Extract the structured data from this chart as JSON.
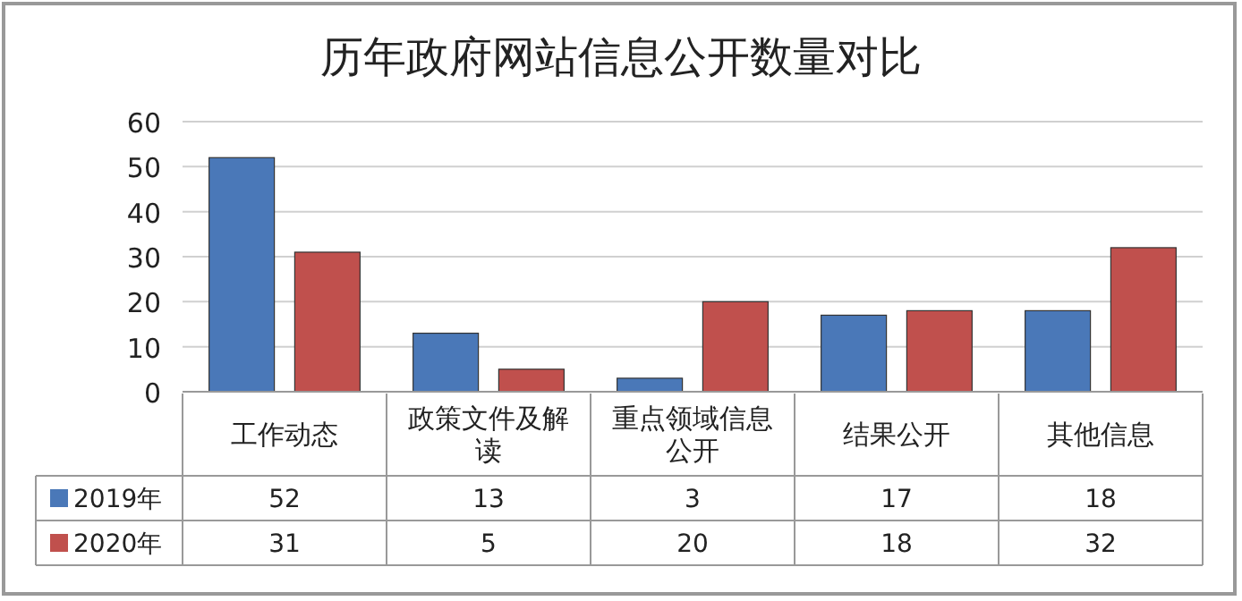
{
  "chart_data": {
    "type": "bar",
    "title": "历年政府网站信息公开数量对比",
    "categories": [
      "工作动态",
      "政策文件及解读",
      "重点领域信息公开",
      "结果公开",
      "其他信息"
    ],
    "series": [
      {
        "name": "2019年",
        "color": "#4a78b8",
        "values": [
          52,
          13,
          3,
          17,
          18
        ]
      },
      {
        "name": "2020年",
        "color": "#c0504d",
        "values": [
          31,
          5,
          20,
          18,
          32
        ]
      }
    ],
    "ylim": [
      0,
      60
    ],
    "yticks": [
      0,
      10,
      20,
      30,
      40,
      50,
      60
    ],
    "grid": "y",
    "data_labels": true,
    "legend": "bottom left"
  }
}
